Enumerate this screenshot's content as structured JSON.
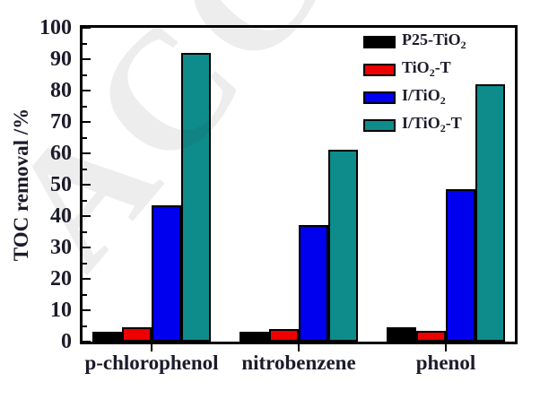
{
  "watermark": "ACCEPTED",
  "chart_data": {
    "type": "bar",
    "title": "",
    "xlabel": "",
    "ylabel": "TOC removal /%",
    "ylim": [
      0,
      100
    ],
    "ytick_step": 10,
    "yminor_step": 5,
    "grid": false,
    "legend_position": "top-right-inside",
    "categories": [
      "p-chlorophenol",
      "nitrobenzene",
      "phenol"
    ],
    "series": [
      {
        "name": "P25-TiO2",
        "color": "#000000",
        "values": [
          3,
          3,
          4.5
        ],
        "label_parts": [
          {
            "t": "P25-TiO"
          },
          {
            "t": "2",
            "sub": true
          }
        ]
      },
      {
        "name": "TiO2-T",
        "color": "#ee0000",
        "values": [
          4.5,
          4,
          3.5
        ],
        "label_parts": [
          {
            "t": "TiO"
          },
          {
            "t": "2",
            "sub": true
          },
          {
            "t": "-T"
          }
        ]
      },
      {
        "name": "I/TiO2",
        "color": "#0000ee",
        "values": [
          43.5,
          37,
          48.5
        ],
        "label_parts": [
          {
            "t": "I/TiO"
          },
          {
            "t": "2",
            "sub": true
          }
        ]
      },
      {
        "name": "I/TiO2-T",
        "color": "#0e8b8b",
        "values": [
          92,
          61,
          82
        ],
        "label_parts": [
          {
            "t": "I/TiO"
          },
          {
            "t": "2",
            "sub": true
          },
          {
            "t": "-T"
          }
        ]
      }
    ],
    "axis_color": "#000000",
    "tick_label_color": "#1b1b2b"
  }
}
